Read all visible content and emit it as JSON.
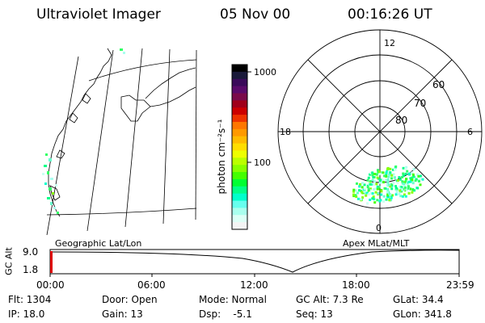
{
  "header": {
    "title": "Ultraviolet Imager",
    "date": "05 Nov 00",
    "time": "00:16:26 UT"
  },
  "colorbar": {
    "unit_label": "photon cm⁻²s⁻¹",
    "ticks": [
      "1000",
      "100"
    ],
    "colors": [
      "#000000",
      "#1a1a3a",
      "#3a0a5a",
      "#5a0a6a",
      "#7a0a4a",
      "#a0001a",
      "#cc0000",
      "#ee3300",
      "#ff7700",
      "#ff9900",
      "#ffbb00",
      "#ffdd00",
      "#eeff00",
      "#bbff00",
      "#88ff00",
      "#44ff00",
      "#00ff33",
      "#00ff88",
      "#00ffcc",
      "#66ffee",
      "#aaffee",
      "#ddfff6",
      "#f4f4f4"
    ]
  },
  "polar_plot": {
    "mlt_labels": [
      "12",
      "18",
      "6",
      "0"
    ],
    "lat_labels": [
      "60",
      "70",
      "80"
    ]
  },
  "map_label": "Geographic Lat/Lon",
  "apex_label": "Apex MLat/MLT",
  "altitude_plot": {
    "axis_label": "GC Alt",
    "y_ticks": [
      "9.0",
      "1.8"
    ],
    "x_ticks": [
      "00:00",
      "06:00",
      "12:00",
      "18:00",
      "23:59"
    ]
  },
  "status": {
    "flt": "Flt: 1304",
    "door": "Door: Open",
    "mode": "Mode: Normal",
    "gc_alt": "GC Alt: 7.3 Re",
    "glat": "GLat:  34.4",
    "ip": "IP: 18.0",
    "gain": "Gain: 13",
    "dsp": "Dsp:    -5.1",
    "seq": "Seq: 13",
    "glon": "GLon: 341.8"
  }
}
